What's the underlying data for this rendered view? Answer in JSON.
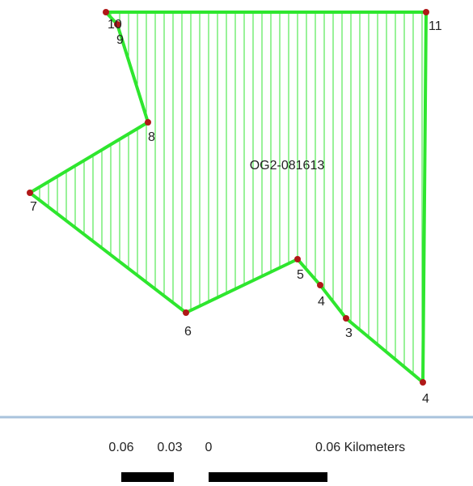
{
  "feature_label": "OG2-081613",
  "vertices": [
    {
      "label": "10"
    },
    {
      "label": "11"
    },
    {
      "label": "4"
    },
    {
      "label": "3"
    },
    {
      "label": "4"
    },
    {
      "label": "5"
    },
    {
      "label": "6"
    },
    {
      "label": "7"
    },
    {
      "label": "8"
    },
    {
      "label": "9"
    }
  ],
  "scale_bar": {
    "labels": [
      "0.06",
      "0.03",
      "0",
      "0.06 Kilometers"
    ]
  }
}
